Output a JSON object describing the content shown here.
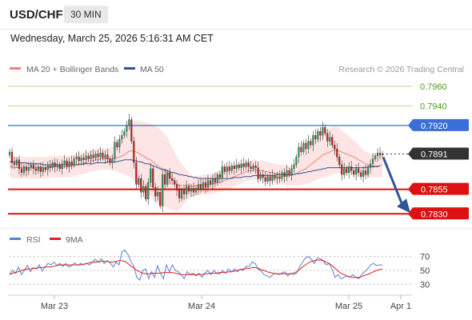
{
  "header": {
    "symbol": "USD/CHF",
    "timeframe": "30 MIN",
    "datetime": "Wednesday, March 25, 2026 5:16:31 AM CET"
  },
  "legend": {
    "ma20_label": "MA 20 + Bollinger Bands",
    "ma50_label": "MA 50",
    "ma20_color": "#f08080",
    "ma50_color": "#2f5596",
    "credit": "Research © 2026 Trading Central"
  },
  "rsi_legend": {
    "rsi_label": "RSI",
    "ma_label": "9MA",
    "rsi_color": "#5b7fd4",
    "ma_color": "#e02020"
  },
  "chart_data": [
    {
      "type": "candlestick",
      "title": "",
      "x_tick_labels": [
        "Mar 23",
        "Mar 24",
        "Mar 25",
        "Apr 1"
      ],
      "ylim": [
        0.7818,
        0.7968
      ],
      "levels": [
        {
          "value": 0.796,
          "label": "0.7960",
          "color": "#66aa22",
          "kind": "target"
        },
        {
          "value": 0.794,
          "label": "0.7940",
          "color": "#66aa22",
          "kind": "target"
        },
        {
          "value": 0.792,
          "label": "0.7920",
          "color": "#3a6fd8",
          "kind": "pivot"
        },
        {
          "value": 0.7891,
          "label": "0.7891",
          "color": "#333333",
          "kind": "last"
        },
        {
          "value": 0.7855,
          "label": "0.7855",
          "color": "#dd1111",
          "kind": "support"
        },
        {
          "value": 0.783,
          "label": "0.7830",
          "color": "#dd1111",
          "kind": "support"
        }
      ],
      "closes": [
        0.7893,
        0.7882,
        0.788,
        0.7885,
        0.7876,
        0.7872,
        0.7878,
        0.7874,
        0.7877,
        0.788,
        0.7876,
        0.7874,
        0.7878,
        0.7873,
        0.7877,
        0.7875,
        0.7879,
        0.7877,
        0.7882,
        0.7878,
        0.788,
        0.7876,
        0.7881,
        0.7884,
        0.7878,
        0.7883,
        0.788,
        0.7886,
        0.7888,
        0.7884,
        0.7887,
        0.7885,
        0.7889,
        0.7886,
        0.789,
        0.7887,
        0.7891,
        0.7888,
        0.7892,
        0.7887,
        0.789,
        0.7886,
        0.7882,
        0.7886,
        0.7903,
        0.7898,
        0.7906,
        0.791,
        0.7914,
        0.792,
        0.7926,
        0.7904,
        0.7882,
        0.786,
        0.7866,
        0.7852,
        0.7858,
        0.7845,
        0.7862,
        0.7876,
        0.7857,
        0.7848,
        0.7852,
        0.7838,
        0.787,
        0.786,
        0.7872,
        0.7866,
        0.7864,
        0.786,
        0.7854,
        0.7846,
        0.7854,
        0.785,
        0.7858,
        0.7853,
        0.7856,
        0.7852,
        0.7856,
        0.786,
        0.7856,
        0.7862,
        0.7857,
        0.7864,
        0.786,
        0.7866,
        0.7862,
        0.787,
        0.7867,
        0.7878,
        0.7873,
        0.7878,
        0.7874,
        0.7879,
        0.7876,
        0.788,
        0.7877,
        0.7881,
        0.7878,
        0.7882,
        0.7878,
        0.7876,
        0.7879,
        0.7877,
        0.7866,
        0.787,
        0.7867,
        0.7863,
        0.7868,
        0.7864,
        0.7869,
        0.7866,
        0.7868,
        0.7866,
        0.7872,
        0.7868,
        0.7874,
        0.787,
        0.7876,
        0.788,
        0.7888,
        0.7898,
        0.7893,
        0.7902,
        0.7896,
        0.7904,
        0.79,
        0.791,
        0.7906,
        0.7914,
        0.791,
        0.7918,
        0.7912,
        0.7904,
        0.7908,
        0.79,
        0.7896,
        0.7888,
        0.788,
        0.787,
        0.7876,
        0.7872,
        0.7878,
        0.7874,
        0.787,
        0.7876,
        0.7872,
        0.7868,
        0.7874,
        0.787,
        0.7877,
        0.7881,
        0.7886,
        0.7889,
        0.7892,
        0.789,
        0.7891
      ],
      "ma20": [
        0.7878,
        0.7878,
        0.7877,
        0.7877,
        0.7877,
        0.7877,
        0.7877,
        0.7877,
        0.7877,
        0.7877,
        0.7877,
        0.7877,
        0.7877,
        0.7877,
        0.7877,
        0.7877,
        0.7877,
        0.7878,
        0.7878,
        0.7878,
        0.7878,
        0.7878,
        0.7878,
        0.7878,
        0.7878,
        0.7878,
        0.7879,
        0.7879,
        0.788,
        0.7881,
        0.7881,
        0.7882,
        0.7882,
        0.7883,
        0.7884,
        0.7884,
        0.7885,
        0.7885,
        0.7886,
        0.7886,
        0.7886,
        0.7886,
        0.7886,
        0.7886,
        0.7887,
        0.7887,
        0.7888,
        0.7889,
        0.789,
        0.7892,
        0.7894,
        0.7894,
        0.7894,
        0.7893,
        0.7892,
        0.789,
        0.7889,
        0.7887,
        0.7886,
        0.7885,
        0.7883,
        0.7881,
        0.7879,
        0.7877,
        0.7876,
        0.7874,
        0.7872,
        0.7869,
        0.7866,
        0.7863,
        0.786,
        0.7859,
        0.7859,
        0.7859,
        0.7859,
        0.7859,
        0.7858,
        0.7858,
        0.7859,
        0.7859,
        0.7859,
        0.786,
        0.786,
        0.786,
        0.786,
        0.7861,
        0.7861,
        0.7862,
        0.7862,
        0.7863,
        0.7864,
        0.7865,
        0.7866,
        0.7867,
        0.7868,
        0.7869,
        0.787,
        0.7871,
        0.7872,
        0.7873,
        0.7874,
        0.7874,
        0.7875,
        0.7875,
        0.7874,
        0.7874,
        0.7874,
        0.7873,
        0.7873,
        0.7872,
        0.7872,
        0.7871,
        0.7871,
        0.787,
        0.787,
        0.787,
        0.7869,
        0.7869,
        0.7869,
        0.787,
        0.7871,
        0.7872,
        0.7874,
        0.7875,
        0.7876,
        0.7878,
        0.788,
        0.7882,
        0.7884,
        0.7886,
        0.7888,
        0.789,
        0.7891,
        0.7892,
        0.7893,
        0.7894,
        0.7895,
        0.7895,
        0.7894,
        0.7893,
        0.7892,
        0.7891,
        0.789,
        0.7889,
        0.7888,
        0.7887,
        0.7885,
        0.7884,
        0.7882,
        0.7881,
        0.788,
        0.7879,
        0.7879,
        0.7879,
        0.7879,
        0.7879,
        0.788
      ],
      "ma50": [
        0.7883,
        0.7883,
        0.7883,
        0.7883,
        0.7882,
        0.7882,
        0.7882,
        0.7882,
        0.7881,
        0.7881,
        0.7881,
        0.7881,
        0.7881,
        0.7881,
        0.788,
        0.788,
        0.788,
        0.788,
        0.788,
        0.788,
        0.788,
        0.788,
        0.788,
        0.788,
        0.788,
        0.788,
        0.788,
        0.788,
        0.788,
        0.788,
        0.788,
        0.7881,
        0.7881,
        0.7881,
        0.7881,
        0.7881,
        0.7882,
        0.7882,
        0.7882,
        0.7882,
        0.7882,
        0.7883,
        0.7883,
        0.7883,
        0.7883,
        0.7883,
        0.7884,
        0.7884,
        0.7885,
        0.7885,
        0.7885,
        0.7885,
        0.7884,
        0.7884,
        0.7883,
        0.7883,
        0.7882,
        0.7881,
        0.7881,
        0.788,
        0.7879,
        0.7878,
        0.7877,
        0.7876,
        0.7875,
        0.7875,
        0.7874,
        0.7873,
        0.7872,
        0.7872,
        0.7871,
        0.787,
        0.787,
        0.7869,
        0.7869,
        0.7868,
        0.7868,
        0.7867,
        0.7867,
        0.7866,
        0.7866,
        0.7866,
        0.7866,
        0.7866,
        0.7866,
        0.7866,
        0.7866,
        0.7866,
        0.7866,
        0.7866,
        0.7866,
        0.7866,
        0.7866,
        0.7866,
        0.7867,
        0.7867,
        0.7867,
        0.7867,
        0.7868,
        0.7868,
        0.7868,
        0.7868,
        0.7869,
        0.7869,
        0.7869,
        0.7869,
        0.7869,
        0.7869,
        0.7869,
        0.7869,
        0.7869,
        0.7869,
        0.787,
        0.787,
        0.787,
        0.787,
        0.787,
        0.787,
        0.787,
        0.787,
        0.7871,
        0.7871,
        0.7871,
        0.7872,
        0.7872,
        0.7873,
        0.7873,
        0.7874,
        0.7874,
        0.7875,
        0.7875,
        0.7876,
        0.7876,
        0.7877,
        0.7877,
        0.7877,
        0.7877,
        0.7877,
        0.7877,
        0.7877,
        0.7877,
        0.7877,
        0.7877,
        0.7877,
        0.7877,
        0.7877,
        0.7877,
        0.7877,
        0.7877,
        0.7877,
        0.7878,
        0.7878,
        0.7878,
        0.7878,
        0.7878,
        0.7879
      ],
      "bollinger_width": [
        0.0011,
        0.0011,
        0.0011,
        0.0011,
        0.0011,
        0.0011,
        0.0011,
        0.0011,
        0.0011,
        0.0011,
        0.0011,
        0.0011,
        0.0011,
        0.0011,
        0.0011,
        0.0011,
        0.0011,
        0.0011,
        0.0011,
        0.0011,
        0.0011,
        0.0011,
        0.0011,
        0.0011,
        0.0011,
        0.0011,
        0.0011,
        0.0011,
        0.0011,
        0.0011,
        0.0011,
        0.0011,
        0.0011,
        0.0011,
        0.0011,
        0.0011,
        0.0011,
        0.0011,
        0.0011,
        0.0011,
        0.0011,
        0.0011,
        0.0011,
        0.0012,
        0.0013,
        0.0014,
        0.0016,
        0.0018,
        0.002,
        0.0023,
        0.0026,
        0.0028,
        0.003,
        0.0032,
        0.0033,
        0.0034,
        0.0035,
        0.0036,
        0.0036,
        0.0037,
        0.0038,
        0.0039,
        0.0039,
        0.0039,
        0.0038,
        0.0037,
        0.0036,
        0.0034,
        0.0032,
        0.003,
        0.0028,
        0.0025,
        0.0022,
        0.0019,
        0.0016,
        0.0013,
        0.0011,
        0.001,
        0.001,
        0.001,
        0.001,
        0.001,
        0.001,
        0.001,
        0.001,
        0.001,
        0.001,
        0.001,
        0.001,
        0.001,
        0.001,
        0.001,
        0.001,
        0.001,
        0.001,
        0.001,
        0.001,
        0.001,
        0.001,
        0.001,
        0.001,
        0.001,
        0.001,
        0.001,
        0.001,
        0.001,
        0.001,
        0.001,
        0.001,
        0.001,
        0.001,
        0.001,
        0.001,
        0.001,
        0.001,
        0.001,
        0.001,
        0.001,
        0.001,
        0.0011,
        0.0012,
        0.0013,
        0.0014,
        0.0015,
        0.0016,
        0.0017,
        0.0018,
        0.0019,
        0.002,
        0.0021,
        0.0022,
        0.0023,
        0.0024,
        0.0024,
        0.0024,
        0.0024,
        0.0024,
        0.0024,
        0.0023,
        0.0022,
        0.0021,
        0.002,
        0.0019,
        0.0018,
        0.0017,
        0.0016,
        0.0015,
        0.0014,
        0.0013,
        0.0012,
        0.0012,
        0.0012,
        0.0012,
        0.0012,
        0.0012,
        0.0012,
        0.0012
      ],
      "forecast": {
        "from": 0.7891,
        "to": 0.783
      }
    },
    {
      "type": "line",
      "title": "RSI",
      "ylim": [
        20,
        80
      ],
      "y_ticks": [
        70,
        50,
        30
      ],
      "reference_line": 50,
      "series": [
        {
          "name": "RSI",
          "values": [
            44,
            50,
            46,
            55,
            44,
            50,
            57,
            48,
            54,
            52,
            58,
            49,
            55,
            60,
            58,
            62,
            57,
            60,
            56,
            60,
            55,
            57,
            61,
            57,
            60,
            58,
            60,
            58,
            62,
            66,
            62,
            67,
            60,
            64,
            61,
            55,
            62,
            58,
            77,
            79,
            73,
            63,
            56,
            40,
            36,
            50,
            52,
            38,
            48,
            40,
            57,
            46,
            38,
            58,
            48,
            58,
            50,
            48,
            44,
            38,
            48,
            44,
            46,
            42,
            46,
            40,
            46,
            50,
            44,
            50,
            46,
            45,
            50,
            46,
            52,
            48,
            52,
            48,
            52,
            50,
            56,
            56,
            62,
            60,
            52,
            49,
            44,
            42,
            40,
            44,
            46,
            44,
            46,
            48,
            42,
            46,
            44,
            46,
            55,
            62,
            68,
            70,
            66,
            60,
            68,
            67,
            64,
            58,
            60,
            52,
            40,
            44,
            38,
            40,
            42,
            40,
            44,
            40,
            38,
            44,
            48,
            52,
            58,
            60,
            57,
            58,
            58
          ]
        },
        {
          "name": "9MA",
          "values": [
            44,
            46,
            47,
            48,
            50,
            51,
            52,
            52,
            53,
            53,
            54,
            54,
            55,
            55,
            55,
            56,
            57,
            58,
            58,
            58,
            58,
            58,
            58,
            58,
            58,
            59,
            60,
            61,
            62,
            62,
            62,
            63,
            63,
            63,
            62,
            62,
            63,
            64,
            64,
            63,
            60,
            56,
            54,
            50,
            48,
            46,
            45,
            45,
            46,
            46,
            46,
            46,
            47,
            47,
            47,
            47,
            46,
            45,
            44,
            44,
            44,
            44,
            44,
            44,
            44,
            44,
            45,
            45,
            46,
            46,
            46,
            47,
            47,
            47,
            48,
            48,
            49,
            50,
            51,
            52,
            53,
            53,
            54,
            54,
            53,
            51,
            50,
            48,
            47,
            46,
            45,
            45,
            45,
            45,
            45,
            45,
            46,
            48,
            51,
            55,
            58,
            61,
            63,
            64,
            65,
            65,
            64,
            62,
            60,
            57,
            53,
            49,
            46,
            44,
            42,
            41,
            40,
            40,
            40,
            41,
            43,
            44,
            46,
            48,
            50,
            51,
            52
          ]
        }
      ]
    }
  ]
}
